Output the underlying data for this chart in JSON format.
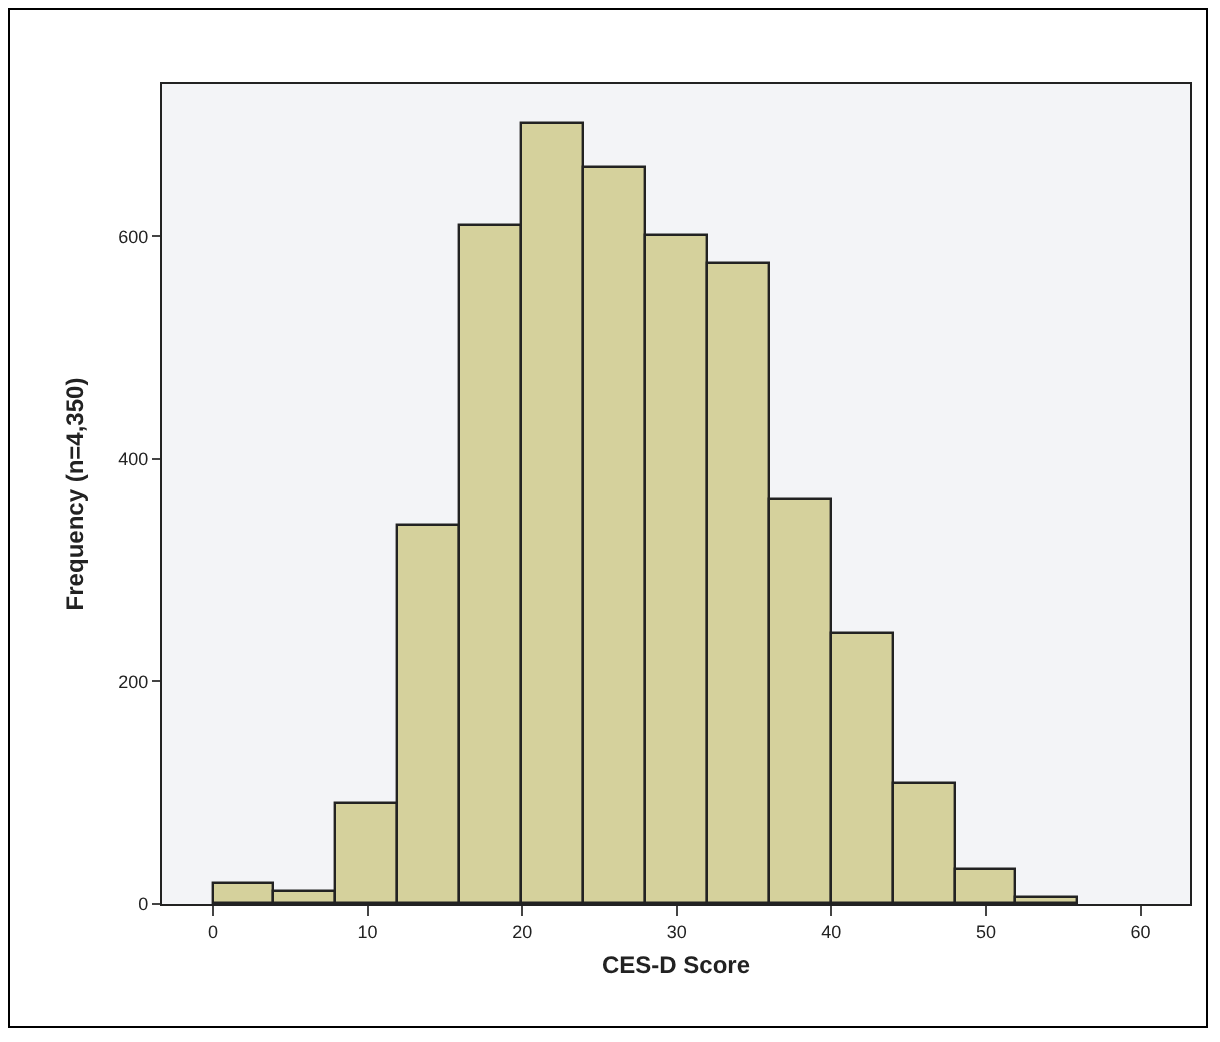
{
  "chart_data": {
    "type": "histogram",
    "xlabel": "CES-D Score",
    "ylabel": "Frequency (n=4,350)",
    "bins": [
      0,
      4,
      8,
      12,
      16,
      20,
      24,
      28,
      32,
      36,
      40,
      44,
      48,
      52,
      56
    ],
    "values": [
      18,
      11,
      89,
      340,
      609,
      701,
      661,
      601,
      575,
      363,
      242,
      107,
      30,
      5
    ],
    "color": "#d5d19c",
    "xlim": [
      -3.3,
      63.2
    ],
    "xticks": [
      0,
      10,
      20,
      30,
      40,
      50,
      60
    ],
    "ylim": [
      0,
      737
    ],
    "yticks": [
      0,
      200,
      400,
      600
    ],
    "grid": false
  }
}
